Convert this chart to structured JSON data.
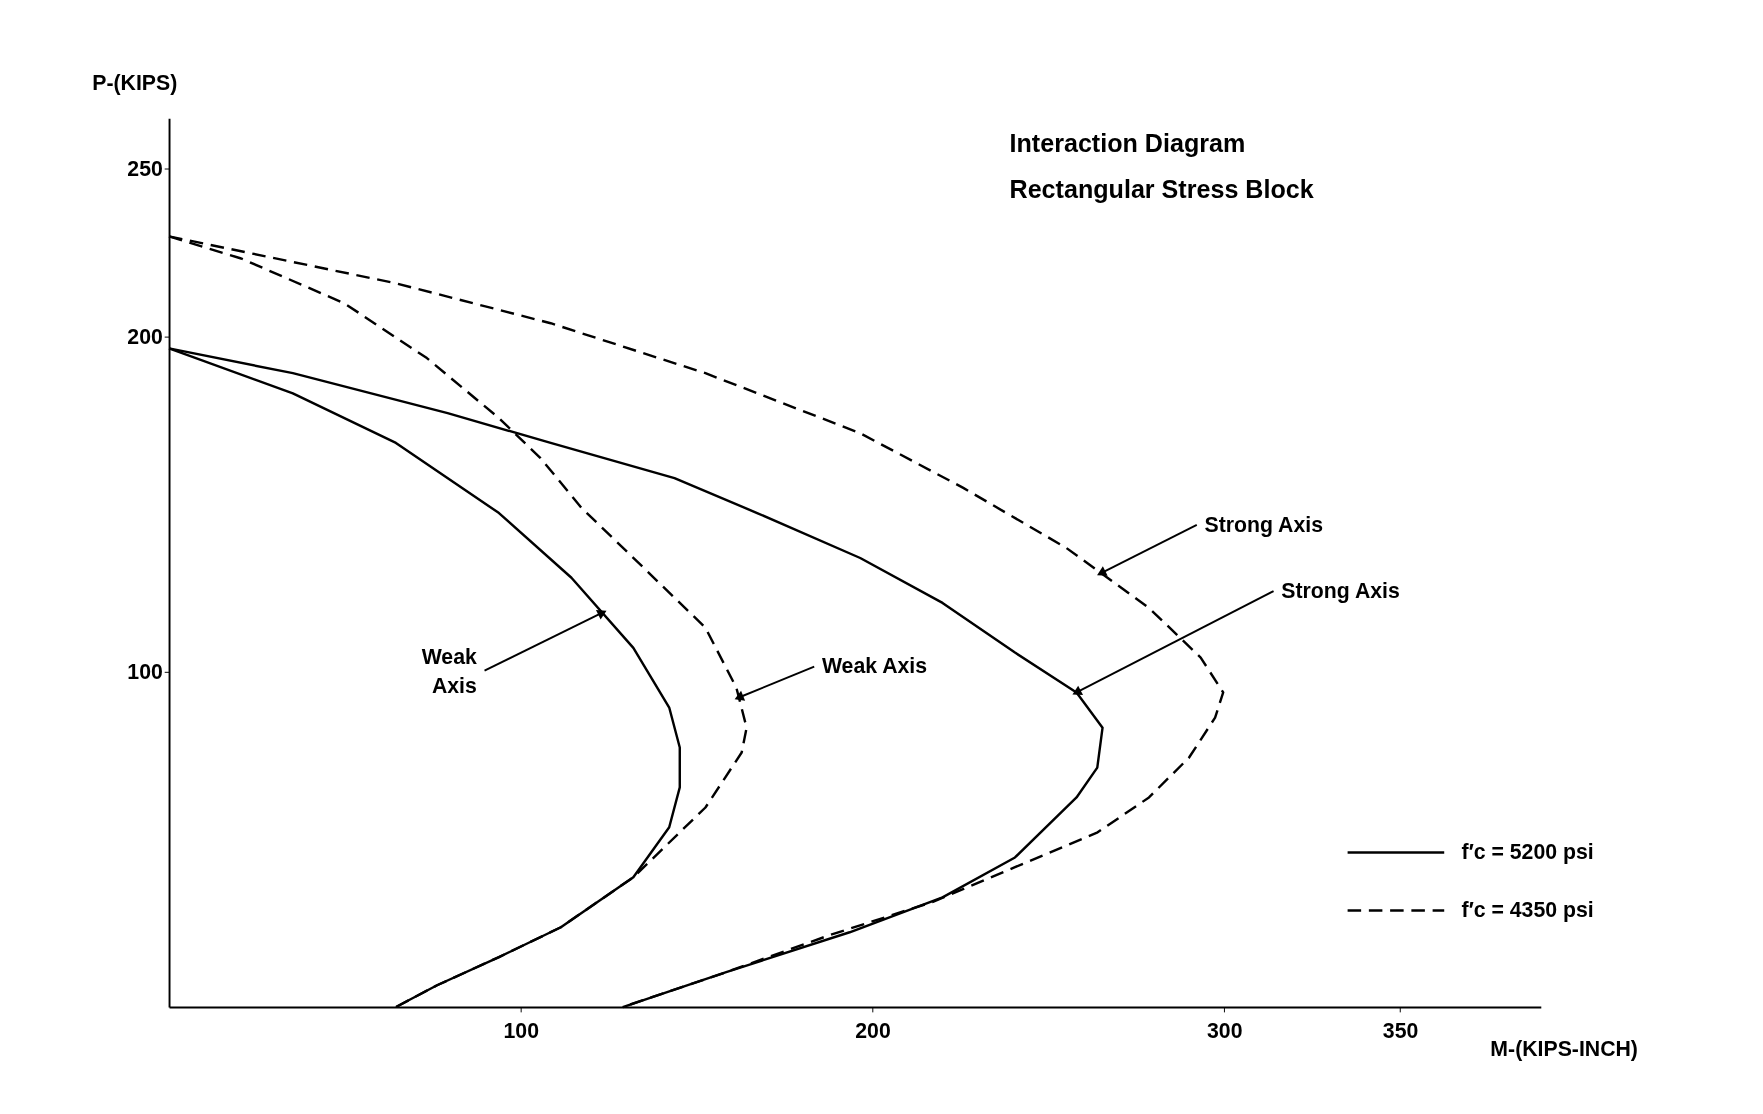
{
  "chart_data": {
    "type": "line",
    "title": "Interaction Diagram",
    "subtitle": "Rectangular Stress Block",
    "xlabel": "M-(KIPS-INCH)",
    "ylabel": "P-(KIPS)",
    "xlim": [
      0,
      390
    ],
    "ylim": [
      0,
      265
    ],
    "xticks": [
      100,
      200,
      300,
      350
    ],
    "yticks": [
      100,
      200,
      250
    ],
    "grid": false,
    "legend": "bottom right",
    "marker": "none",
    "series": [
      {
        "name": "f′c = 5200 psi",
        "color": "#000000",
        "line_style": "solid",
        "x": [
          0,
          35.2,
          64.5,
          93.8,
          114.4,
          132,
          142.2,
          145.2,
          145.2,
          142.2,
          132,
          111.4,
          93.8,
          76.2,
          64.5
        ],
        "values": [
          196.4,
          183,
          168.2,
          147.3,
          128,
          107.1,
          89.3,
          77.4,
          65.5,
          53.6,
          38.7,
          23.8,
          14.9,
          6.5,
          0
        ]
      },
      {
        "name": "f′c = 4350 psi",
        "color": "#000000",
        "line_style": "dashed",
        "x": [
          0,
          20.5,
          49.9,
          73.3,
          93.8,
          105.6,
          117.3,
          134.9,
          152.5,
          161.3,
          164.2,
          162.8,
          152.5,
          132,
          111.4,
          93.8,
          76.2,
          64.5
        ],
        "values": [
          229.8,
          223.2,
          209.8,
          193.5,
          175.6,
          163.7,
          148.8,
          131,
          113.1,
          95.2,
          83.3,
          75.9,
          59.5,
          38.7,
          23.8,
          14.9,
          6.5,
          0
        ]
      },
      {
        "color": "#000000",
        "line_style": "solid",
        "x": [
          0,
          35.2,
          79.2,
          108.5,
          143.7,
          167.2,
          196.5,
          219.9,
          240.5,
          258,
          265.4,
          263.9,
          258,
          240.5,
          219.9,
          193.5,
          158.4,
          129
        ],
        "values": [
          196.4,
          189,
          177.1,
          168.2,
          157.7,
          147.3,
          133.9,
          120.5,
          105.7,
          93.8,
          83.3,
          71.4,
          62.5,
          44.6,
          32.7,
          22.3,
          10.4,
          0
        ]
      },
      {
        "color": "#000000",
        "line_style": "dashed",
        "x": [
          0,
          64.5,
          108.5,
          152.5,
          196.5,
          225.8,
          255.1,
          278.6,
          293.3,
          299.7,
          297.4,
          290,
          278.6,
          264,
          240.5,
          217,
          187.7,
          158.4,
          129
        ],
        "values": [
          229.8,
          215.8,
          203.9,
          189,
          171.1,
          154.8,
          136.9,
          119,
          104.2,
          93.8,
          86.3,
          74.4,
          62.5,
          52.1,
          41.7,
          31.3,
          21.4,
          10.4,
          0
        ]
      }
    ],
    "annotations": [
      {
        "text": "Strong Axis",
        "x": 265,
        "y": 129.4
      },
      {
        "text": "Strong Axis",
        "x": 258,
        "y": 93.8
      },
      {
        "text": "Weak Axis",
        "x": 162,
        "y": 92.3
      },
      {
        "text": "Weak\nAxis",
        "x": 123.2,
        "y": 117.6
      }
    ]
  }
}
